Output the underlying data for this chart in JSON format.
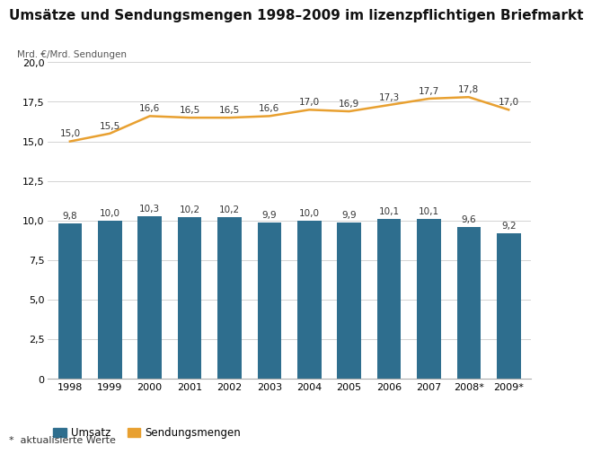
{
  "title": "Umsätze und Sendungsmengen 1998–2009 im lizenzpflichtigen Briefmarkt",
  "ylabel": "Mrd. €/Mrd. Sendungen",
  "years": [
    "1998",
    "1999",
    "2000",
    "2001",
    "2002",
    "2003",
    "2004",
    "2005",
    "2006",
    "2007",
    "2008*",
    "2009*"
  ],
  "bar_values": [
    9.8,
    10.0,
    10.3,
    10.2,
    10.2,
    9.9,
    10.0,
    9.9,
    10.1,
    10.1,
    9.6,
    9.2
  ],
  "line_values": [
    15.0,
    15.5,
    16.6,
    16.5,
    16.5,
    16.6,
    17.0,
    16.9,
    17.3,
    17.7,
    17.8,
    17.0
  ],
  "bar_color": "#2E6E8E",
  "line_color": "#E8A030",
  "ylim": [
    0,
    20.0
  ],
  "yticks": [
    0,
    2.5,
    5.0,
    7.5,
    10.0,
    12.5,
    15.0,
    17.5,
    20.0
  ],
  "ytick_labels": [
    "0",
    "2,5",
    "5,0",
    "7,5",
    "10,0",
    "12,5",
    "15,0",
    "17,5",
    "20,0"
  ],
  "legend_umsatz": "Umsatz",
  "legend_sendung": "Sendungsmengen",
  "footnote": "*  aktualisierte Werte",
  "background_color": "#FFFFFF",
  "title_fontsize": 11,
  "ylabel_fontsize": 7.5,
  "tick_fontsize": 8,
  "bar_label_fontsize": 7.5,
  "line_label_fontsize": 7.5,
  "legend_fontsize": 8.5
}
